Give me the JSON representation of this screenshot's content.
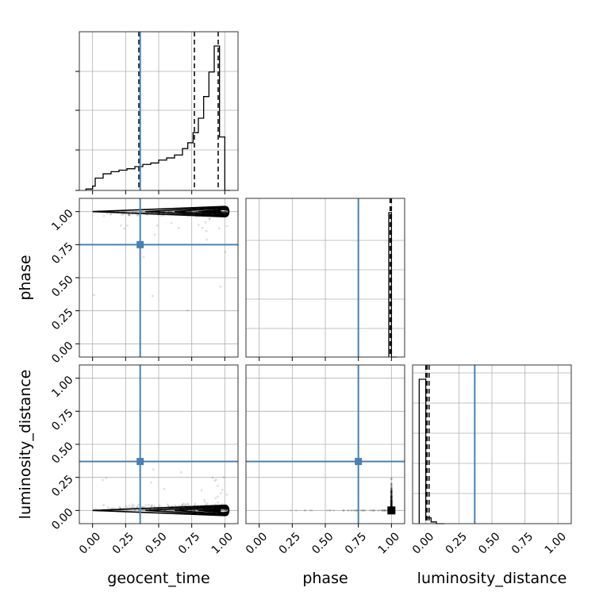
{
  "chart_data": {
    "type": "corner",
    "parameters": [
      "geocent_time",
      "phase",
      "luminosity_distance"
    ],
    "ticks": [
      0.0,
      0.25,
      0.5,
      0.75,
      1.0
    ],
    "tick_labels": [
      "0.00",
      "0.25",
      "0.50",
      "0.75",
      "1.00"
    ],
    "truth": {
      "geocent_time": 0.36,
      "phase": 0.75,
      "luminosity_distance": 0.37
    },
    "truth_color": "#4682b4",
    "grid": true,
    "histograms": {
      "geocent_time": {
        "bin_edges": [
          -0.05,
          0.0,
          0.02,
          0.08,
          0.14,
          0.2,
          0.26,
          0.32,
          0.38,
          0.44,
          0.5,
          0.56,
          0.62,
          0.68,
          0.72,
          0.76,
          0.8,
          0.84,
          0.88,
          0.92,
          0.96,
          1.0,
          1.04
        ],
        "counts": [
          0.01,
          0.03,
          0.085,
          0.115,
          0.13,
          0.14,
          0.15,
          0.165,
          0.18,
          0.19,
          0.21,
          0.225,
          0.245,
          0.29,
          0.33,
          0.4,
          0.5,
          0.65,
          0.82,
          1.0,
          0.37,
          0.0
        ],
        "quantiles": [
          0.35,
          0.77,
          0.95
        ]
      },
      "phase": {
        "bin_edges": [
          0.98,
          1.0,
          1.04
        ],
        "counts": [
          1.0,
          0.0
        ],
        "quantiles": [
          0.99,
          1.0
        ]
      },
      "luminosity_distance": {
        "bin_edges": [
          -0.05,
          0.0,
          0.04,
          0.08,
          0.14
        ],
        "counts": [
          1.0,
          0.04,
          0.012,
          0.0
        ],
        "quantiles": [
          0.0,
          0.01,
          0.025
        ]
      }
    }
  }
}
